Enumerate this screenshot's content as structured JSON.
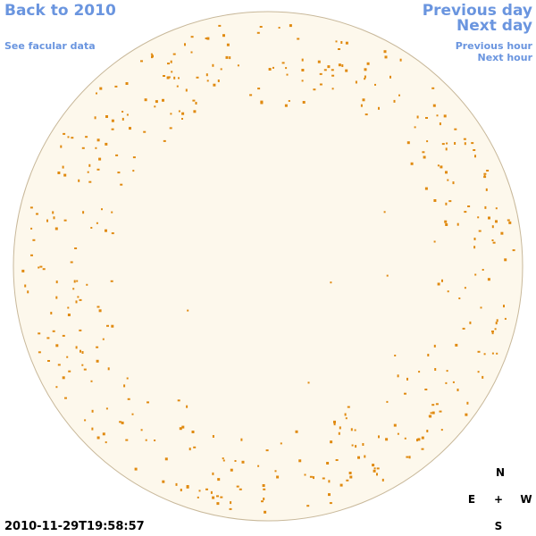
{
  "header": {
    "back": "Back to 2010",
    "facular": "See facular data",
    "prev_day": "Previous day",
    "next_day": "Next day",
    "prev_hour": "Previous hour",
    "next_hour": "Next hour"
  },
  "timestamp": "2010-11-29T19:58:57",
  "compass": {
    "n": "N",
    "e": "E",
    "center": "+",
    "w": "W",
    "s": "S"
  }
}
